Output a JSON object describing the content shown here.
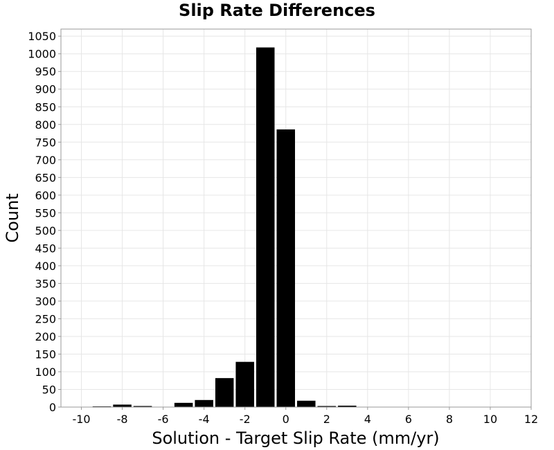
{
  "chart_data": {
    "type": "bar",
    "title": "Slip Rate Differences",
    "xlabel": "Solution - Target Slip Rate (mm/yr)",
    "ylabel": "Count",
    "xlim": [
      -11,
      12
    ],
    "ylim": [
      0,
      1070
    ],
    "xticks": [
      -10,
      -8,
      -6,
      -4,
      -2,
      0,
      2,
      4,
      6,
      8,
      10,
      12
    ],
    "yticks": [
      0,
      50,
      100,
      150,
      200,
      250,
      300,
      350,
      400,
      450,
      500,
      550,
      600,
      650,
      700,
      750,
      800,
      850,
      900,
      950,
      1000,
      1050
    ],
    "bin_width": 1,
    "x": [
      -10,
      -9,
      -8,
      -7,
      -6,
      -5,
      -4,
      -3,
      -2,
      -1,
      0,
      1,
      2,
      3,
      4
    ],
    "values": [
      0,
      2,
      7,
      3,
      1,
      12,
      20,
      82,
      128,
      1018,
      786,
      18,
      3,
      4,
      0
    ],
    "grid": true,
    "bar_color": "#000000",
    "grid_color": "#e6e6e6"
  }
}
